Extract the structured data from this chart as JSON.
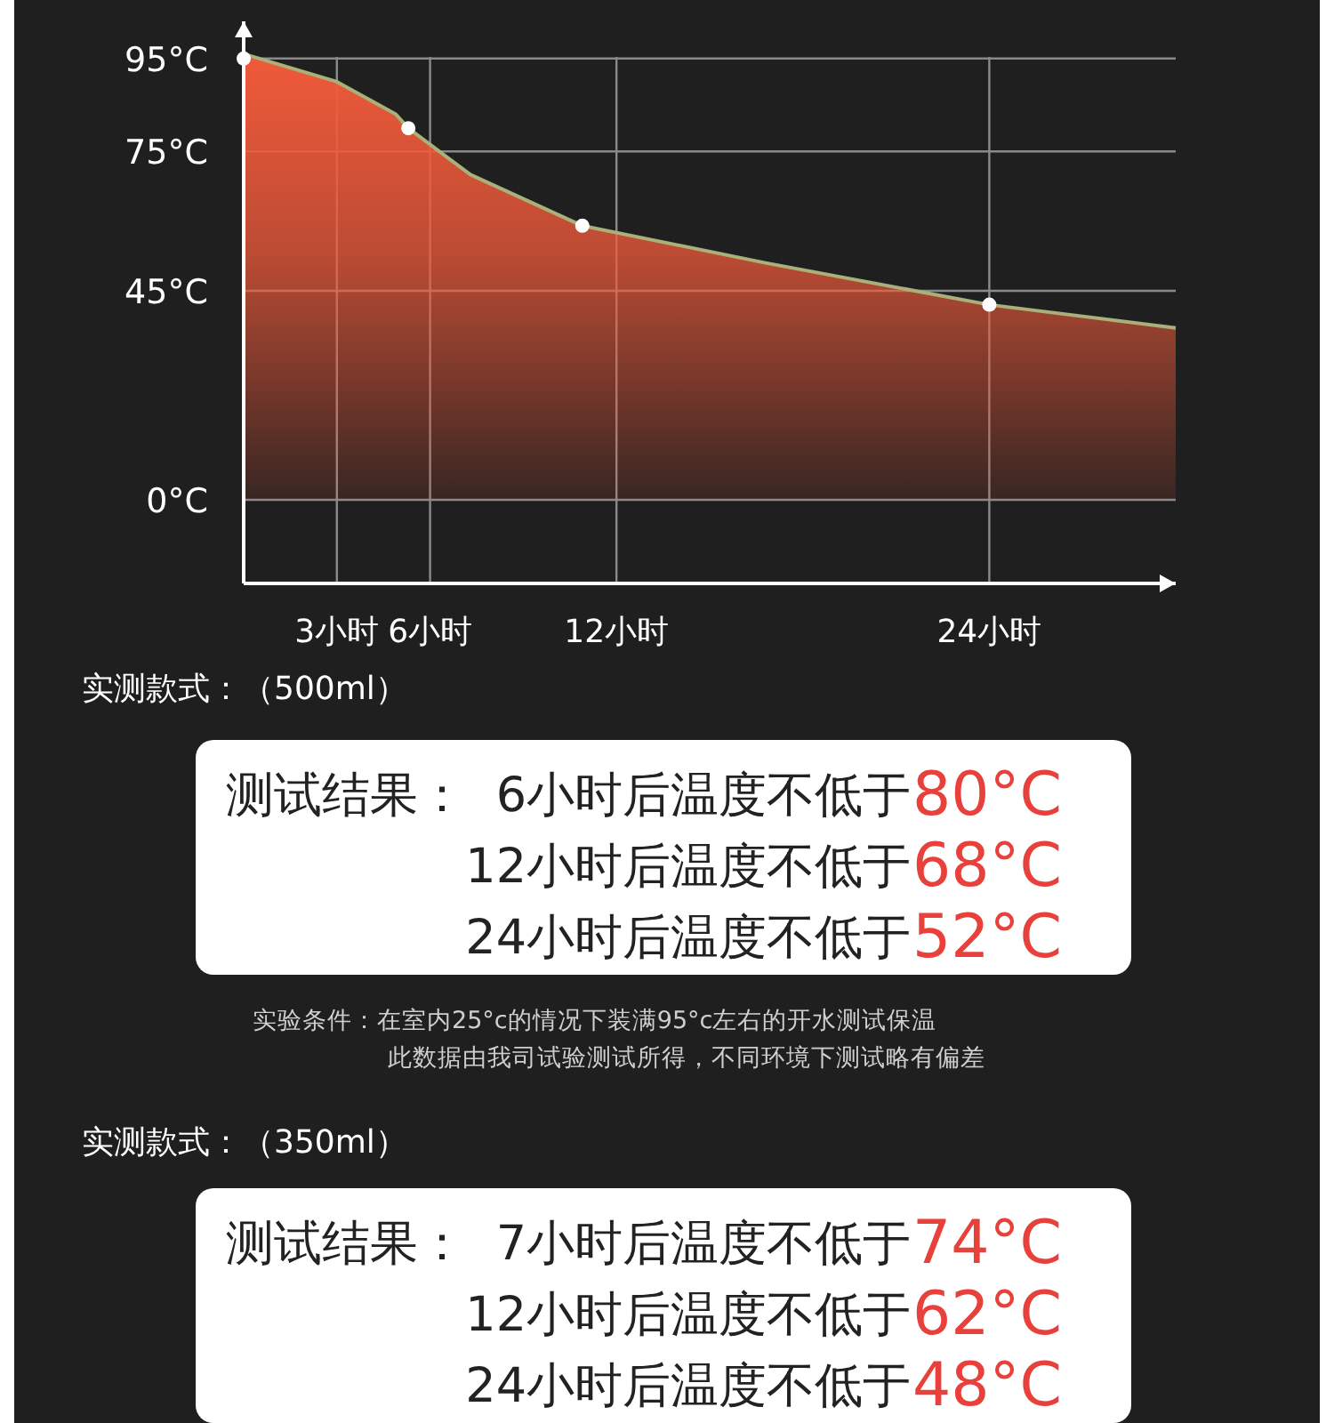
{
  "chart_data": {
    "type": "area",
    "series": [
      {
        "type": "area",
        "color": "#f05a3a",
        "x": [
          0,
          3,
          4.9,
          5.3,
          7.3,
          10.9,
          16.8,
          24,
          30
        ],
        "values": [
          96,
          90,
          83,
          80,
          70,
          59,
          51,
          42,
          37
        ]
      },
      {
        "type": "scatter",
        "color": "#ffffff",
        "marker": "circle",
        "x": [
          0,
          5.3,
          10.9,
          24
        ],
        "values": [
          95,
          80,
          59,
          42
        ]
      }
    ],
    "xlim": [
      0,
      30
    ],
    "xticks": [
      {
        "value": 3,
        "label": "3小时"
      },
      {
        "value": 6,
        "label": "6小时"
      },
      {
        "value": 12,
        "label": "12小时"
      },
      {
        "value": 24,
        "label": "24小时"
      }
    ],
    "ylim": [
      -18,
      103
    ],
    "yticks": [
      {
        "value": 0,
        "label": "0°C"
      },
      {
        "value": 45,
        "label": "45°C"
      },
      {
        "value": 75,
        "label": "75°C"
      },
      {
        "value": 95,
        "label": "95°C"
      }
    ],
    "grid": true,
    "annotations": [
      "实测款式：（500ml）",
      "测试结果：",
      "6小时后温度不低于",
      "80°C",
      "12小时后温度不低于",
      "68°C",
      "24小时后温度不低于",
      "52°C",
      "实验条件：在室内25°c的情况下装满95°c左右的开水测试保温",
      "此数据由我司试验测试所得，不同环境下测试略有偏差",
      "实测款式：（350ml）",
      "测试结果：",
      "7小时后温度不低于",
      "74°C",
      "12小时后温度不低于",
      "62°C",
      "24小时后温度不低于",
      "48°C"
    ]
  }
}
